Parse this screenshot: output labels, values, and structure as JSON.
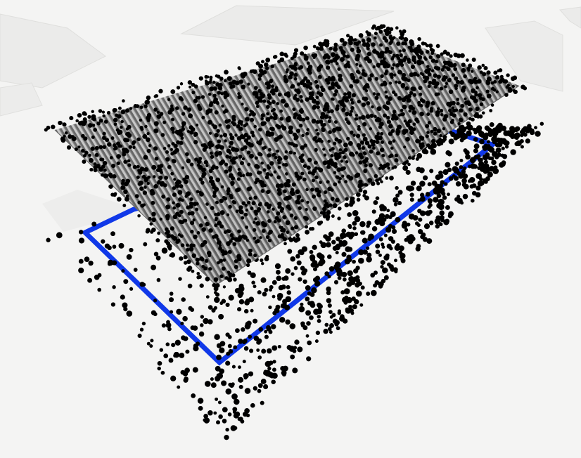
{
  "scene": {
    "type": "3d-point-cloud-view",
    "objects": [
      "ground-buildings",
      "footprint-outline",
      "roof-mesh",
      "lidar-points"
    ]
  },
  "colors": {
    "background": "#f4f4f3",
    "ground_building": "#ebebea",
    "ground_building_edge": "#dfdfdd",
    "footprint_outline": "#1038e8",
    "roof_dark": "#5e5e5e",
    "roof_light": "#c9c9c9",
    "point": "#000000"
  },
  "counts": {
    "roof_points": 1900,
    "ground_points": 1300
  }
}
